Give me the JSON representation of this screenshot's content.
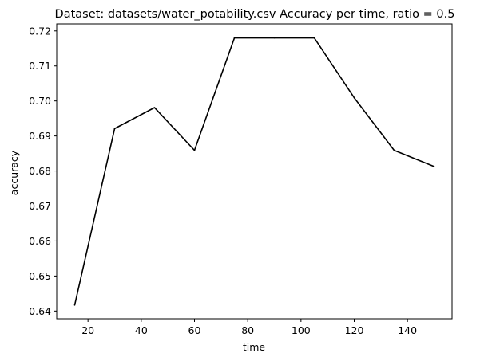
{
  "chart_data": {
    "type": "line",
    "title": "Dataset: datasets/water_potability.csv Accuracy per time, ratio = 0.5",
    "xlabel": "time",
    "ylabel": "accuracy",
    "xlim": [
      8.25,
      156.75
    ],
    "ylim": [
      0.6378,
      0.722
    ],
    "x_ticks": [
      20,
      40,
      60,
      80,
      100,
      120,
      140
    ],
    "y_ticks": [
      0.64,
      0.65,
      0.66,
      0.67,
      0.68,
      0.69,
      0.7,
      0.71,
      0.72
    ],
    "x_tick_labels": [
      "20",
      "40",
      "60",
      "80",
      "100",
      "120",
      "140"
    ],
    "y_tick_labels": [
      "0.64",
      "0.65",
      "0.66",
      "0.67",
      "0.68",
      "0.69",
      "0.70",
      "0.71",
      "0.72"
    ],
    "grid": false,
    "legend": "none",
    "line_color": "#000000",
    "series": [
      {
        "x": [
          15,
          30,
          45,
          60,
          75,
          90,
          105,
          120,
          135,
          150
        ],
        "values": [
          0.6417,
          0.6921,
          0.6981,
          0.6859,
          0.718,
          0.718,
          0.718,
          0.7009,
          0.6859,
          0.6813
        ]
      }
    ]
  }
}
